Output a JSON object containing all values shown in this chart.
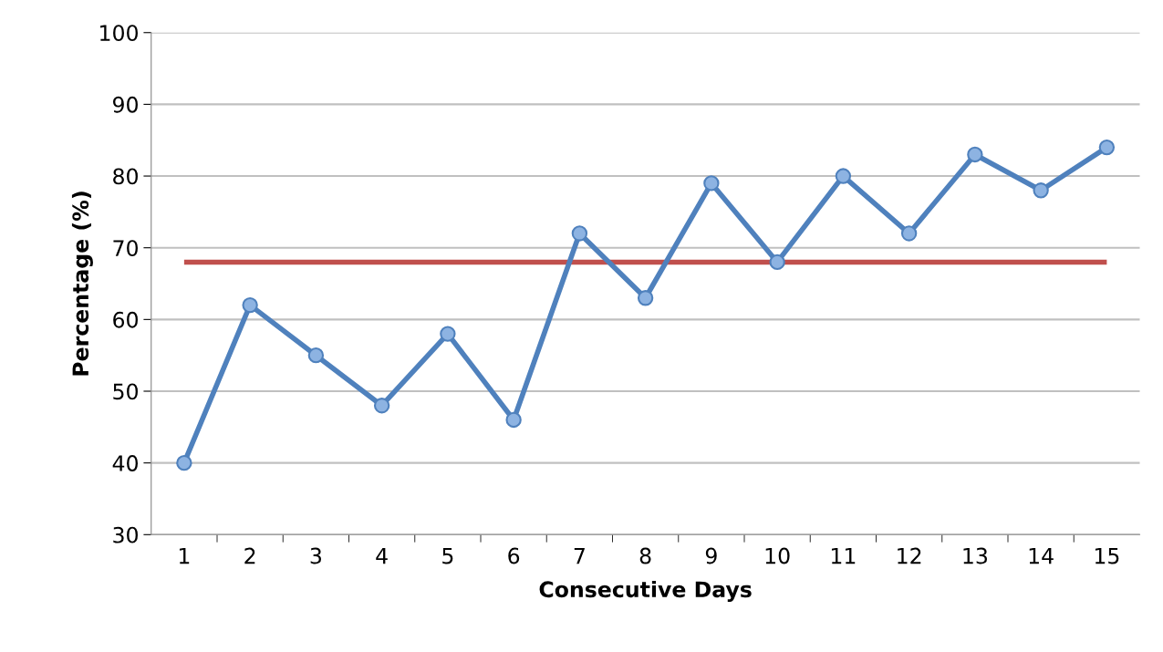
{
  "chart_data": {
    "type": "line",
    "xlabel": "Consecutive Days",
    "ylabel": "Percentage (%)",
    "categories": [
      "1",
      "2",
      "3",
      "4",
      "5",
      "6",
      "7",
      "8",
      "9",
      "10",
      "11",
      "12",
      "13",
      "14",
      "15"
    ],
    "series": [
      {
        "color": "#4f81bd",
        "values": [
          40,
          62,
          55,
          48,
          58,
          46,
          72,
          63,
          79,
          68,
          80,
          72,
          83,
          78,
          84
        ]
      }
    ],
    "ref_lines": [
      {
        "axis": "y",
        "value": 68,
        "color": "#c0504d"
      }
    ],
    "ylim": [
      30,
      100
    ],
    "yticks": [
      30,
      40,
      50,
      60,
      70,
      80,
      90,
      100
    ],
    "grid": "y",
    "marker": "circle",
    "line_style": "solid"
  }
}
